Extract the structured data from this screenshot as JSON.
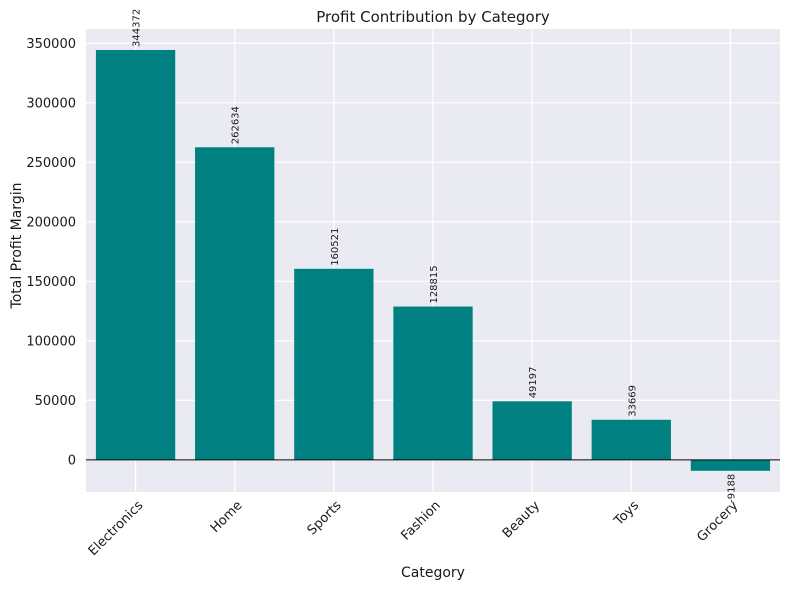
{
  "chart_data": {
    "type": "bar",
    "title": "Profit Contribution by Category",
    "xlabel": "Category",
    "ylabel": "Total Profit Margin",
    "categories": [
      "Electronics",
      "Home",
      "Sports",
      "Fashion",
      "Beauty",
      "Toys",
      "Grocery"
    ],
    "values": [
      344372,
      262634,
      160521,
      128815,
      49197,
      33669,
      -9188
    ],
    "data_labels": [
      "344372",
      "262634",
      "160521",
      "128815",
      "49197",
      "33669",
      "-9188"
    ],
    "yticks": [
      0,
      50000,
      100000,
      150000,
      200000,
      250000,
      300000,
      350000
    ],
    "ytick_labels": [
      "0",
      "50000",
      "100000",
      "150000",
      "200000",
      "250000",
      "300000",
      "350000"
    ],
    "ylim": [
      -27000,
      362000
    ],
    "grid": true,
    "zero_line": true,
    "colors": {
      "bar": "#008080",
      "plot_background": "#eaeaf2",
      "grid": "#ffffff",
      "zero_line": "#000000"
    }
  }
}
